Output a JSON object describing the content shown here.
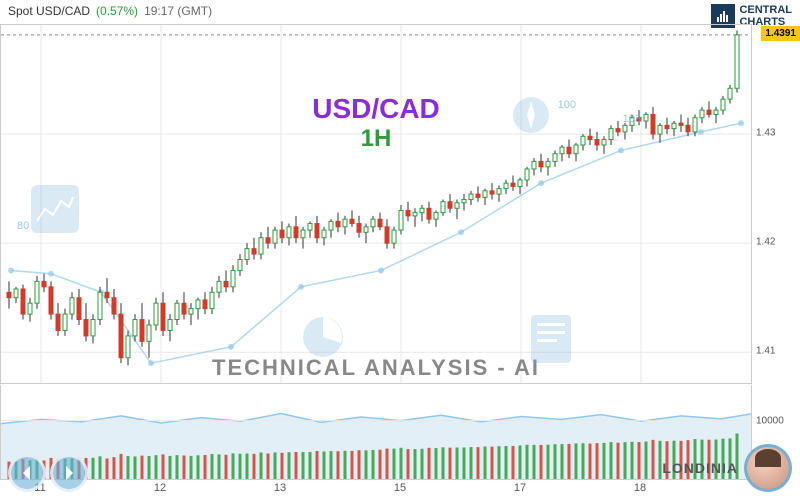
{
  "header": {
    "instrument": "Spot USD/CAD",
    "change": "(0.57%)",
    "time": "19:17 (GMT)"
  },
  "logo": {
    "line1": "CENTRAL",
    "line2": "CHARTS"
  },
  "titles": {
    "pair": "USD/CAD",
    "timeframe": "1H",
    "tech": "TECHNICAL  ANALYSIS - AI"
  },
  "price_badge": "1.4391",
  "brand": "LONDINIA",
  "indicator_labels": {
    "ma100": "100",
    "ma102": "103",
    "ma80": "80"
  },
  "colors": {
    "up": "#2a9d3a",
    "down": "#d43a2a",
    "pair": "#8a2be2",
    "grid": "#e8e8e8",
    "border": "#cccccc",
    "text": "#555555",
    "badge_bg": "#f5c518",
    "watermark": "#6bb0d8",
    "ma_line": "#8fc7e8",
    "volume_area": "#c8e0f0"
  },
  "main_chart": {
    "type": "candlestick",
    "ylim": [
      1.407,
      1.44
    ],
    "ytick_step": 0.01,
    "yticks": [
      1.41,
      1.42,
      1.43
    ],
    "xticks": [
      {
        "x": 40,
        "label": "11"
      },
      {
        "x": 160,
        "label": "12"
      },
      {
        "x": 280,
        "label": "13"
      },
      {
        "x": 400,
        "label": "15"
      },
      {
        "x": 520,
        "label": "17"
      },
      {
        "x": 640,
        "label": "18"
      }
    ],
    "x_range": [
      0,
      752
    ],
    "candles": [
      {
        "x": 8,
        "o": 1.4155,
        "h": 1.4165,
        "l": 1.414,
        "c": 1.415
      },
      {
        "x": 15,
        "o": 1.415,
        "h": 1.416,
        "l": 1.4145,
        "c": 1.4158
      },
      {
        "x": 22,
        "o": 1.4158,
        "h": 1.4162,
        "l": 1.413,
        "c": 1.4135
      },
      {
        "x": 29,
        "o": 1.4135,
        "h": 1.415,
        "l": 1.4128,
        "c": 1.4145
      },
      {
        "x": 36,
        "o": 1.4145,
        "h": 1.417,
        "l": 1.414,
        "c": 1.4165
      },
      {
        "x": 43,
        "o": 1.4165,
        "h": 1.4172,
        "l": 1.4155,
        "c": 1.416
      },
      {
        "x": 50,
        "o": 1.416,
        "h": 1.4165,
        "l": 1.413,
        "c": 1.4135
      },
      {
        "x": 57,
        "o": 1.4135,
        "h": 1.4145,
        "l": 1.4115,
        "c": 1.412
      },
      {
        "x": 64,
        "o": 1.412,
        "h": 1.414,
        "l": 1.4115,
        "c": 1.4135
      },
      {
        "x": 71,
        "o": 1.4135,
        "h": 1.4155,
        "l": 1.413,
        "c": 1.415
      },
      {
        "x": 78,
        "o": 1.415,
        "h": 1.4158,
        "l": 1.4125,
        "c": 1.413
      },
      {
        "x": 85,
        "o": 1.413,
        "h": 1.4145,
        "l": 1.411,
        "c": 1.4115
      },
      {
        "x": 92,
        "o": 1.4115,
        "h": 1.4135,
        "l": 1.4108,
        "c": 1.413
      },
      {
        "x": 99,
        "o": 1.413,
        "h": 1.416,
        "l": 1.4125,
        "c": 1.4155
      },
      {
        "x": 106,
        "o": 1.4155,
        "h": 1.4168,
        "l": 1.4145,
        "c": 1.415
      },
      {
        "x": 113,
        "o": 1.415,
        "h": 1.4158,
        "l": 1.413,
        "c": 1.4135
      },
      {
        "x": 120,
        "o": 1.4135,
        "h": 1.4145,
        "l": 1.409,
        "c": 1.4095
      },
      {
        "x": 127,
        "o": 1.4095,
        "h": 1.412,
        "l": 1.4088,
        "c": 1.4115
      },
      {
        "x": 134,
        "o": 1.4115,
        "h": 1.4135,
        "l": 1.411,
        "c": 1.413
      },
      {
        "x": 141,
        "o": 1.413,
        "h": 1.4145,
        "l": 1.4105,
        "c": 1.411
      },
      {
        "x": 148,
        "o": 1.411,
        "h": 1.413,
        "l": 1.4095,
        "c": 1.4125
      },
      {
        "x": 155,
        "o": 1.4125,
        "h": 1.415,
        "l": 1.412,
        "c": 1.4145
      },
      {
        "x": 162,
        "o": 1.4145,
        "h": 1.4155,
        "l": 1.4115,
        "c": 1.412
      },
      {
        "x": 169,
        "o": 1.412,
        "h": 1.4135,
        "l": 1.411,
        "c": 1.413
      },
      {
        "x": 176,
        "o": 1.413,
        "h": 1.4148,
        "l": 1.4125,
        "c": 1.4145
      },
      {
        "x": 183,
        "o": 1.4145,
        "h": 1.4155,
        "l": 1.413,
        "c": 1.4135
      },
      {
        "x": 190,
        "o": 1.4135,
        "h": 1.4145,
        "l": 1.4125,
        "c": 1.414
      },
      {
        "x": 197,
        "o": 1.414,
        "h": 1.415,
        "l": 1.413,
        "c": 1.4148
      },
      {
        "x": 204,
        "o": 1.4148,
        "h": 1.4155,
        "l": 1.4135,
        "c": 1.414
      },
      {
        "x": 211,
        "o": 1.414,
        "h": 1.416,
        "l": 1.4135,
        "c": 1.4155
      },
      {
        "x": 218,
        "o": 1.4155,
        "h": 1.417,
        "l": 1.415,
        "c": 1.4165
      },
      {
        "x": 225,
        "o": 1.4165,
        "h": 1.4175,
        "l": 1.4155,
        "c": 1.416
      },
      {
        "x": 232,
        "o": 1.416,
        "h": 1.418,
        "l": 1.4155,
        "c": 1.4175
      },
      {
        "x": 239,
        "o": 1.4175,
        "h": 1.419,
        "l": 1.417,
        "c": 1.4185
      },
      {
        "x": 246,
        "o": 1.4185,
        "h": 1.42,
        "l": 1.418,
        "c": 1.4195
      },
      {
        "x": 253,
        "o": 1.4195,
        "h": 1.4205,
        "l": 1.4185,
        "c": 1.419
      },
      {
        "x": 260,
        "o": 1.419,
        "h": 1.421,
        "l": 1.4185,
        "c": 1.4205
      },
      {
        "x": 267,
        "o": 1.4205,
        "h": 1.4215,
        "l": 1.4195,
        "c": 1.42
      },
      {
        "x": 274,
        "o": 1.42,
        "h": 1.4215,
        "l": 1.4195,
        "c": 1.4212
      },
      {
        "x": 281,
        "o": 1.4212,
        "h": 1.422,
        "l": 1.42,
        "c": 1.4205
      },
      {
        "x": 288,
        "o": 1.4205,
        "h": 1.4218,
        "l": 1.4198,
        "c": 1.4215
      },
      {
        "x": 295,
        "o": 1.4215,
        "h": 1.4225,
        "l": 1.42,
        "c": 1.4205
      },
      {
        "x": 302,
        "o": 1.4205,
        "h": 1.4215,
        "l": 1.4195,
        "c": 1.4212
      },
      {
        "x": 309,
        "o": 1.4212,
        "h": 1.422,
        "l": 1.4205,
        "c": 1.4218
      },
      {
        "x": 316,
        "o": 1.4218,
        "h": 1.4225,
        "l": 1.42,
        "c": 1.4205
      },
      {
        "x": 323,
        "o": 1.4205,
        "h": 1.4215,
        "l": 1.4198,
        "c": 1.4212
      },
      {
        "x": 330,
        "o": 1.4212,
        "h": 1.4222,
        "l": 1.4205,
        "c": 1.422
      },
      {
        "x": 337,
        "o": 1.422,
        "h": 1.4228,
        "l": 1.421,
        "c": 1.4215
      },
      {
        "x": 344,
        "o": 1.4215,
        "h": 1.4225,
        "l": 1.4208,
        "c": 1.4222
      },
      {
        "x": 351,
        "o": 1.4222,
        "h": 1.423,
        "l": 1.4215,
        "c": 1.4218
      },
      {
        "x": 358,
        "o": 1.4218,
        "h": 1.4225,
        "l": 1.4205,
        "c": 1.421
      },
      {
        "x": 365,
        "o": 1.421,
        "h": 1.4218,
        "l": 1.42,
        "c": 1.4215
      },
      {
        "x": 372,
        "o": 1.4215,
        "h": 1.4225,
        "l": 1.421,
        "c": 1.4222
      },
      {
        "x": 379,
        "o": 1.4222,
        "h": 1.4228,
        "l": 1.4212,
        "c": 1.4215
      },
      {
        "x": 386,
        "o": 1.4215,
        "h": 1.4222,
        "l": 1.4195,
        "c": 1.42
      },
      {
        "x": 393,
        "o": 1.42,
        "h": 1.4215,
        "l": 1.4195,
        "c": 1.4212
      },
      {
        "x": 400,
        "o": 1.4212,
        "h": 1.4235,
        "l": 1.4208,
        "c": 1.423
      },
      {
        "x": 407,
        "o": 1.423,
        "h": 1.4238,
        "l": 1.422,
        "c": 1.4225
      },
      {
        "x": 414,
        "o": 1.4225,
        "h": 1.4232,
        "l": 1.4215,
        "c": 1.4228
      },
      {
        "x": 421,
        "o": 1.4228,
        "h": 1.4235,
        "l": 1.422,
        "c": 1.4232
      },
      {
        "x": 428,
        "o": 1.4232,
        "h": 1.4238,
        "l": 1.4218,
        "c": 1.4222
      },
      {
        "x": 435,
        "o": 1.4222,
        "h": 1.423,
        "l": 1.4215,
        "c": 1.4228
      },
      {
        "x": 442,
        "o": 1.4228,
        "h": 1.424,
        "l": 1.4225,
        "c": 1.4238
      },
      {
        "x": 449,
        "o": 1.4238,
        "h": 1.4245,
        "l": 1.4228,
        "c": 1.4232
      },
      {
        "x": 456,
        "o": 1.4232,
        "h": 1.424,
        "l": 1.4222,
        "c": 1.4237
      },
      {
        "x": 463,
        "o": 1.4237,
        "h": 1.4245,
        "l": 1.423,
        "c": 1.424
      },
      {
        "x": 470,
        "o": 1.424,
        "h": 1.4248,
        "l": 1.4235,
        "c": 1.4245
      },
      {
        "x": 477,
        "o": 1.4245,
        "h": 1.4252,
        "l": 1.4238,
        "c": 1.4242
      },
      {
        "x": 484,
        "o": 1.4242,
        "h": 1.425,
        "l": 1.4235,
        "c": 1.4248
      },
      {
        "x": 491,
        "o": 1.4248,
        "h": 1.4255,
        "l": 1.424,
        "c": 1.4245
      },
      {
        "x": 498,
        "o": 1.4245,
        "h": 1.4253,
        "l": 1.4238,
        "c": 1.425
      },
      {
        "x": 505,
        "o": 1.425,
        "h": 1.4258,
        "l": 1.4245,
        "c": 1.4255
      },
      {
        "x": 512,
        "o": 1.4255,
        "h": 1.4262,
        "l": 1.4248,
        "c": 1.4252
      },
      {
        "x": 519,
        "o": 1.4252,
        "h": 1.426,
        "l": 1.4245,
        "c": 1.4258
      },
      {
        "x": 526,
        "o": 1.4258,
        "h": 1.427,
        "l": 1.4252,
        "c": 1.4268
      },
      {
        "x": 533,
        "o": 1.4268,
        "h": 1.4278,
        "l": 1.4262,
        "c": 1.4275
      },
      {
        "x": 540,
        "o": 1.4275,
        "h": 1.4282,
        "l": 1.4265,
        "c": 1.427
      },
      {
        "x": 547,
        "o": 1.427,
        "h": 1.4278,
        "l": 1.4262,
        "c": 1.4275
      },
      {
        "x": 554,
        "o": 1.4275,
        "h": 1.4285,
        "l": 1.427,
        "c": 1.4282
      },
      {
        "x": 561,
        "o": 1.4282,
        "h": 1.429,
        "l": 1.4275,
        "c": 1.4288
      },
      {
        "x": 568,
        "o": 1.4288,
        "h": 1.4295,
        "l": 1.4278,
        "c": 1.4282
      },
      {
        "x": 575,
        "o": 1.4282,
        "h": 1.4292,
        "l": 1.4275,
        "c": 1.429
      },
      {
        "x": 582,
        "o": 1.429,
        "h": 1.43,
        "l": 1.4285,
        "c": 1.4298
      },
      {
        "x": 589,
        "o": 1.4298,
        "h": 1.4305,
        "l": 1.429,
        "c": 1.4295
      },
      {
        "x": 596,
        "o": 1.4295,
        "h": 1.4302,
        "l": 1.4285,
        "c": 1.429
      },
      {
        "x": 603,
        "o": 1.429,
        "h": 1.4298,
        "l": 1.4282,
        "c": 1.4295
      },
      {
        "x": 610,
        "o": 1.4295,
        "h": 1.4308,
        "l": 1.429,
        "c": 1.4305
      },
      {
        "x": 617,
        "o": 1.4305,
        "h": 1.4312,
        "l": 1.4298,
        "c": 1.4302
      },
      {
        "x": 624,
        "o": 1.4302,
        "h": 1.431,
        "l": 1.4295,
        "c": 1.4308
      },
      {
        "x": 631,
        "o": 1.4308,
        "h": 1.4318,
        "l": 1.4302,
        "c": 1.4315
      },
      {
        "x": 638,
        "o": 1.4315,
        "h": 1.4322,
        "l": 1.4308,
        "c": 1.4312
      },
      {
        "x": 645,
        "o": 1.4312,
        "h": 1.432,
        "l": 1.4305,
        "c": 1.4318
      },
      {
        "x": 652,
        "o": 1.4318,
        "h": 1.4325,
        "l": 1.4295,
        "c": 1.43
      },
      {
        "x": 659,
        "o": 1.43,
        "h": 1.431,
        "l": 1.4292,
        "c": 1.4308
      },
      {
        "x": 666,
        "o": 1.4308,
        "h": 1.4315,
        "l": 1.43,
        "c": 1.4305
      },
      {
        "x": 673,
        "o": 1.4305,
        "h": 1.4312,
        "l": 1.4298,
        "c": 1.431
      },
      {
        "x": 680,
        "o": 1.431,
        "h": 1.4318,
        "l": 1.4302,
        "c": 1.4308
      },
      {
        "x": 687,
        "o": 1.4308,
        "h": 1.4315,
        "l": 1.4298,
        "c": 1.4302
      },
      {
        "x": 694,
        "o": 1.4302,
        "h": 1.4318,
        "l": 1.4298,
        "c": 1.4315
      },
      {
        "x": 701,
        "o": 1.4315,
        "h": 1.4325,
        "l": 1.431,
        "c": 1.4322
      },
      {
        "x": 708,
        "o": 1.4322,
        "h": 1.433,
        "l": 1.4315,
        "c": 1.4318
      },
      {
        "x": 715,
        "o": 1.4318,
        "h": 1.4325,
        "l": 1.431,
        "c": 1.4322
      },
      {
        "x": 722,
        "o": 1.4322,
        "h": 1.4335,
        "l": 1.4318,
        "c": 1.4332
      },
      {
        "x": 729,
        "o": 1.4332,
        "h": 1.4345,
        "l": 1.4328,
        "c": 1.4342
      },
      {
        "x": 736,
        "o": 1.4342,
        "h": 1.4395,
        "l": 1.4338,
        "c": 1.4391
      }
    ],
    "ma_line": [
      {
        "x": 10,
        "y": 1.4175
      },
      {
        "x": 50,
        "y": 1.4172
      },
      {
        "x": 100,
        "y": 1.4155
      },
      {
        "x": 150,
        "y": 1.409
      },
      {
        "x": 230,
        "y": 1.4105
      },
      {
        "x": 300,
        "y": 1.416
      },
      {
        "x": 380,
        "y": 1.4175
      },
      {
        "x": 460,
        "y": 1.421
      },
      {
        "x": 540,
        "y": 1.4255
      },
      {
        "x": 620,
        "y": 1.4285
      },
      {
        "x": 700,
        "y": 1.4302
      },
      {
        "x": 740,
        "y": 1.431
      }
    ]
  },
  "volume_chart": {
    "type": "volume",
    "ylim": [
      0,
      16000
    ],
    "yticks": [
      10000
    ],
    "area_line": [
      {
        "x": 0,
        "y": 9500
      },
      {
        "x": 40,
        "y": 10200
      },
      {
        "x": 80,
        "y": 9800
      },
      {
        "x": 120,
        "y": 10800
      },
      {
        "x": 160,
        "y": 9600
      },
      {
        "x": 200,
        "y": 10500
      },
      {
        "x": 240,
        "y": 9900
      },
      {
        "x": 280,
        "y": 11200
      },
      {
        "x": 320,
        "y": 9700
      },
      {
        "x": 360,
        "y": 10600
      },
      {
        "x": 400,
        "y": 10000
      },
      {
        "x": 440,
        "y": 10900
      },
      {
        "x": 480,
        "y": 9800
      },
      {
        "x": 520,
        "y": 10700
      },
      {
        "x": 560,
        "y": 10200
      },
      {
        "x": 600,
        "y": 11000
      },
      {
        "x": 640,
        "y": 9900
      },
      {
        "x": 680,
        "y": 10800
      },
      {
        "x": 720,
        "y": 10300
      },
      {
        "x": 752,
        "y": 11200
      }
    ]
  }
}
